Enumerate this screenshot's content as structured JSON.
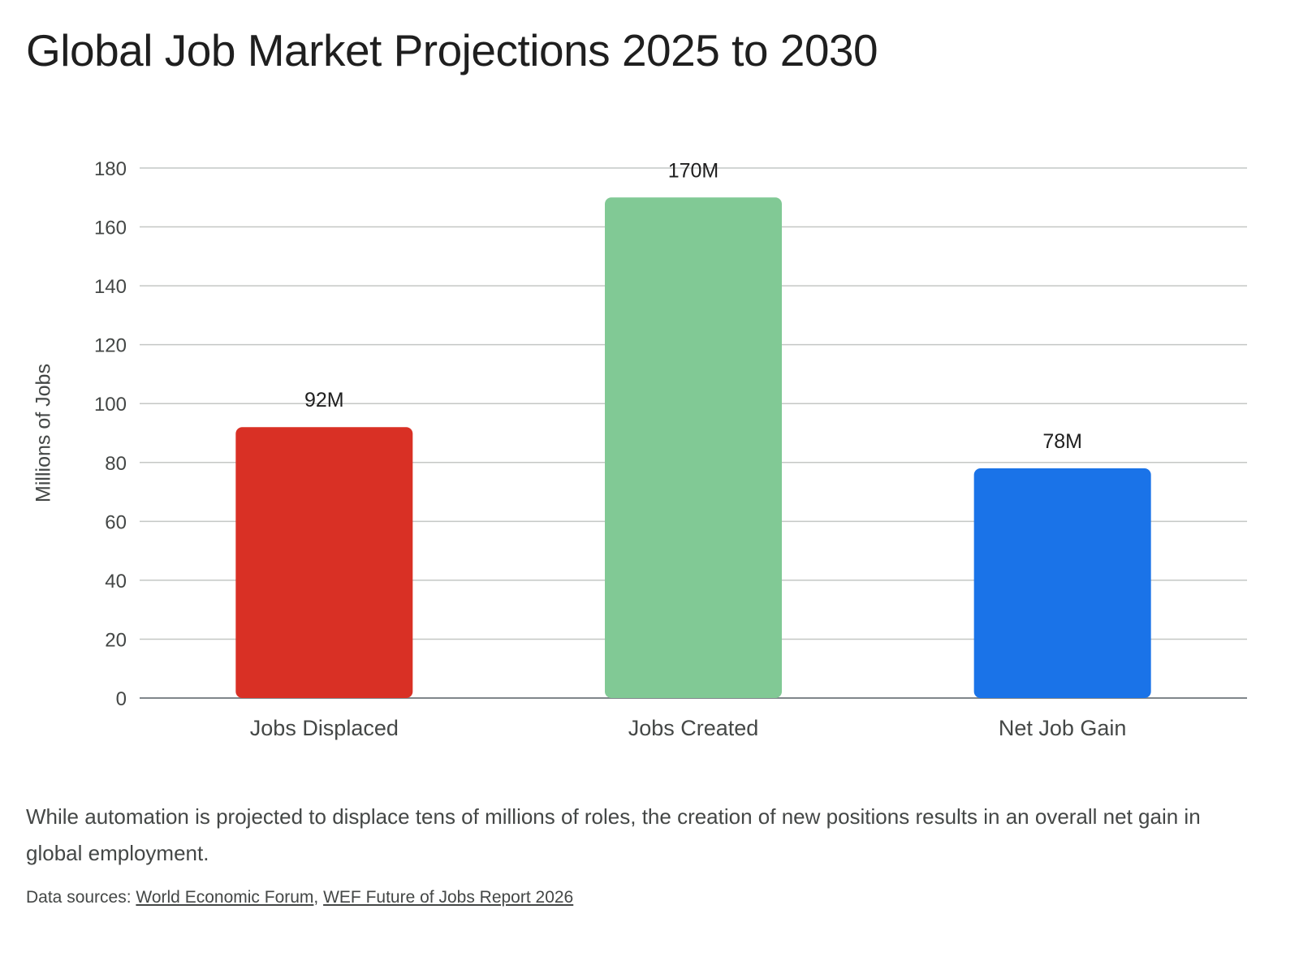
{
  "title": "Global Job Market Projections 2025 to 2030",
  "caption": "While automation is projected to displace tens of millions of roles, the creation of new positions results in an overall net gain in global employment.",
  "sources": {
    "prefix": "Data sources: ",
    "links": [
      "World Economic Forum",
      "WEF Future of Jobs Report 2026"
    ],
    "separator": ", "
  },
  "chart_data": {
    "type": "bar",
    "categories": [
      "Jobs Displaced",
      "Jobs Created",
      "Net Job Gain"
    ],
    "values": [
      92,
      170,
      78
    ],
    "data_labels": [
      "92M",
      "170M",
      "78M"
    ],
    "colors": [
      "#d93025",
      "#81c995",
      "#1a73e8"
    ],
    "xlabel": "",
    "ylabel": "Millions of Jobs",
    "ylim": [
      0,
      180
    ],
    "yticks": [
      0,
      20,
      40,
      60,
      80,
      100,
      120,
      140,
      160,
      180
    ],
    "grid": true,
    "legend": "none"
  }
}
